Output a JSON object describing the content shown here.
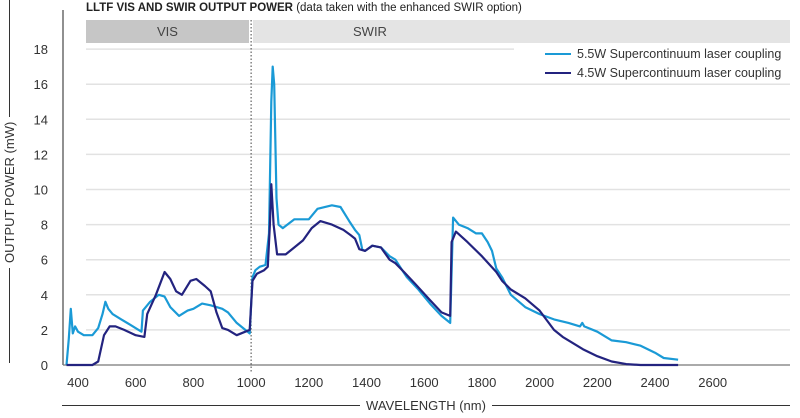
{
  "header": {
    "title_bold": "LLTF VIS AND SWIR OUTPUT POWER",
    "title_note": "(data taken with the enhanced SWIR option)"
  },
  "bands": {
    "vis": "VIS",
    "swir": "SWIR"
  },
  "chart_data": {
    "type": "line",
    "title": "LLTF VIS AND SWIR OUTPUT POWER (data taken with the enhanced SWIR option)",
    "xlabel": "WAVELENGTH (nm)",
    "ylabel": "OUTPUT POWER (mW)",
    "xlim": [
      355,
      2700
    ],
    "ylim": [
      0,
      18
    ],
    "xticks": [
      400,
      600,
      800,
      1000,
      1200,
      1400,
      1600,
      1800,
      2000,
      2200,
      2400,
      2600
    ],
    "yticks": [
      0,
      2,
      4,
      6,
      8,
      10,
      12,
      14,
      16,
      18
    ],
    "grid": "horizontal",
    "legend_position": "top-right",
    "annotations": [
      {
        "label": "VIS",
        "range_nm": [
          400,
          1000
        ]
      },
      {
        "label": "SWIR",
        "range_nm": [
          1000,
          2700
        ]
      },
      {
        "divider_nm": 1000,
        "style": "dotted"
      }
    ],
    "series": [
      {
        "name": "5.5W Supercontinuum laser coupling",
        "color": "#1a9ad6",
        "points": [
          [
            360,
            0
          ],
          [
            368,
            1.5
          ],
          [
            375,
            3.2
          ],
          [
            382,
            1.8
          ],
          [
            390,
            2.2
          ],
          [
            400,
            1.9
          ],
          [
            420,
            1.7
          ],
          [
            450,
            1.7
          ],
          [
            470,
            2.1
          ],
          [
            485,
            2.9
          ],
          [
            495,
            3.6
          ],
          [
            505,
            3.2
          ],
          [
            520,
            2.9
          ],
          [
            550,
            2.6
          ],
          [
            580,
            2.3
          ],
          [
            610,
            2.0
          ],
          [
            620,
            1.9
          ],
          [
            625,
            3.1
          ],
          [
            650,
            3.6
          ],
          [
            680,
            4.0
          ],
          [
            700,
            3.9
          ],
          [
            720,
            3.3
          ],
          [
            750,
            2.8
          ],
          [
            780,
            3.1
          ],
          [
            800,
            3.2
          ],
          [
            830,
            3.5
          ],
          [
            860,
            3.4
          ],
          [
            880,
            3.3
          ],
          [
            900,
            3.2
          ],
          [
            920,
            3.0
          ],
          [
            950,
            2.4
          ],
          [
            980,
            2.0
          ],
          [
            995,
            1.8
          ],
          [
            1005,
            5.0
          ],
          [
            1015,
            5.4
          ],
          [
            1030,
            5.6
          ],
          [
            1050,
            5.7
          ],
          [
            1062,
            7.5
          ],
          [
            1070,
            15.0
          ],
          [
            1075,
            17.0
          ],
          [
            1080,
            16.0
          ],
          [
            1088,
            9.5
          ],
          [
            1095,
            8.0
          ],
          [
            1110,
            7.8
          ],
          [
            1150,
            8.3
          ],
          [
            1200,
            8.3
          ],
          [
            1230,
            8.9
          ],
          [
            1280,
            9.1
          ],
          [
            1310,
            9.0
          ],
          [
            1340,
            8.2
          ],
          [
            1360,
            7.7
          ],
          [
            1375,
            7.4
          ],
          [
            1385,
            6.6
          ],
          [
            1395,
            6.5
          ],
          [
            1420,
            6.8
          ],
          [
            1450,
            6.7
          ],
          [
            1480,
            6.2
          ],
          [
            1500,
            6.0
          ],
          [
            1520,
            5.5
          ],
          [
            1540,
            5.0
          ],
          [
            1580,
            4.3
          ],
          [
            1620,
            3.5
          ],
          [
            1660,
            2.8
          ],
          [
            1690,
            2.4
          ],
          [
            1700,
            8.4
          ],
          [
            1720,
            8.0
          ],
          [
            1750,
            7.8
          ],
          [
            1780,
            7.5
          ],
          [
            1800,
            7.5
          ],
          [
            1820,
            7.0
          ],
          [
            1835,
            6.5
          ],
          [
            1850,
            5.5
          ],
          [
            1870,
            5.0
          ],
          [
            1900,
            4.0
          ],
          [
            1950,
            3.3
          ],
          [
            2000,
            2.9
          ],
          [
            2050,
            2.6
          ],
          [
            2100,
            2.4
          ],
          [
            2140,
            2.2
          ],
          [
            2148,
            2.4
          ],
          [
            2155,
            2.2
          ],
          [
            2200,
            1.9
          ],
          [
            2250,
            1.4
          ],
          [
            2300,
            1.3
          ],
          [
            2350,
            1.1
          ],
          [
            2400,
            0.7
          ],
          [
            2430,
            0.4
          ],
          [
            2480,
            0.3
          ]
        ]
      },
      {
        "name": "4.5W Supercontinuum laser coupling",
        "color": "#23237f",
        "points": [
          [
            360,
            0
          ],
          [
            400,
            0
          ],
          [
            450,
            0
          ],
          [
            470,
            0.2
          ],
          [
            490,
            1.7
          ],
          [
            510,
            2.2
          ],
          [
            530,
            2.2
          ],
          [
            560,
            2.0
          ],
          [
            600,
            1.7
          ],
          [
            630,
            1.6
          ],
          [
            640,
            2.9
          ],
          [
            670,
            4.0
          ],
          [
            700,
            5.3
          ],
          [
            720,
            4.9
          ],
          [
            740,
            4.2
          ],
          [
            760,
            4.0
          ],
          [
            790,
            4.8
          ],
          [
            810,
            4.9
          ],
          [
            840,
            4.5
          ],
          [
            860,
            4.2
          ],
          [
            880,
            3.0
          ],
          [
            900,
            2.1
          ],
          [
            920,
            2.0
          ],
          [
            950,
            1.7
          ],
          [
            980,
            1.9
          ],
          [
            995,
            2.0
          ],
          [
            1005,
            4.8
          ],
          [
            1020,
            5.2
          ],
          [
            1045,
            5.4
          ],
          [
            1058,
            5.6
          ],
          [
            1065,
            8.0
          ],
          [
            1070,
            10.3
          ],
          [
            1078,
            8.0
          ],
          [
            1090,
            6.3
          ],
          [
            1120,
            6.3
          ],
          [
            1150,
            6.7
          ],
          [
            1180,
            7.1
          ],
          [
            1210,
            7.8
          ],
          [
            1240,
            8.2
          ],
          [
            1280,
            8.0
          ],
          [
            1320,
            7.7
          ],
          [
            1345,
            7.4
          ],
          [
            1360,
            7.2
          ],
          [
            1375,
            6.6
          ],
          [
            1395,
            6.5
          ],
          [
            1420,
            6.8
          ],
          [
            1450,
            6.7
          ],
          [
            1480,
            6.0
          ],
          [
            1500,
            5.8
          ],
          [
            1530,
            5.3
          ],
          [
            1570,
            4.6
          ],
          [
            1620,
            3.7
          ],
          [
            1660,
            3.0
          ],
          [
            1690,
            2.8
          ],
          [
            1695,
            7.0
          ],
          [
            1710,
            7.6
          ],
          [
            1750,
            7.0
          ],
          [
            1800,
            6.2
          ],
          [
            1850,
            5.3
          ],
          [
            1870,
            4.8
          ],
          [
            1900,
            4.3
          ],
          [
            1950,
            3.8
          ],
          [
            2000,
            3.1
          ],
          [
            2050,
            2.0
          ],
          [
            2080,
            1.6
          ],
          [
            2100,
            1.4
          ],
          [
            2150,
            0.9
          ],
          [
            2200,
            0.5
          ],
          [
            2250,
            0.2
          ],
          [
            2300,
            0.05
          ],
          [
            2350,
            0.0
          ],
          [
            2480,
            0.0
          ]
        ]
      }
    ]
  }
}
